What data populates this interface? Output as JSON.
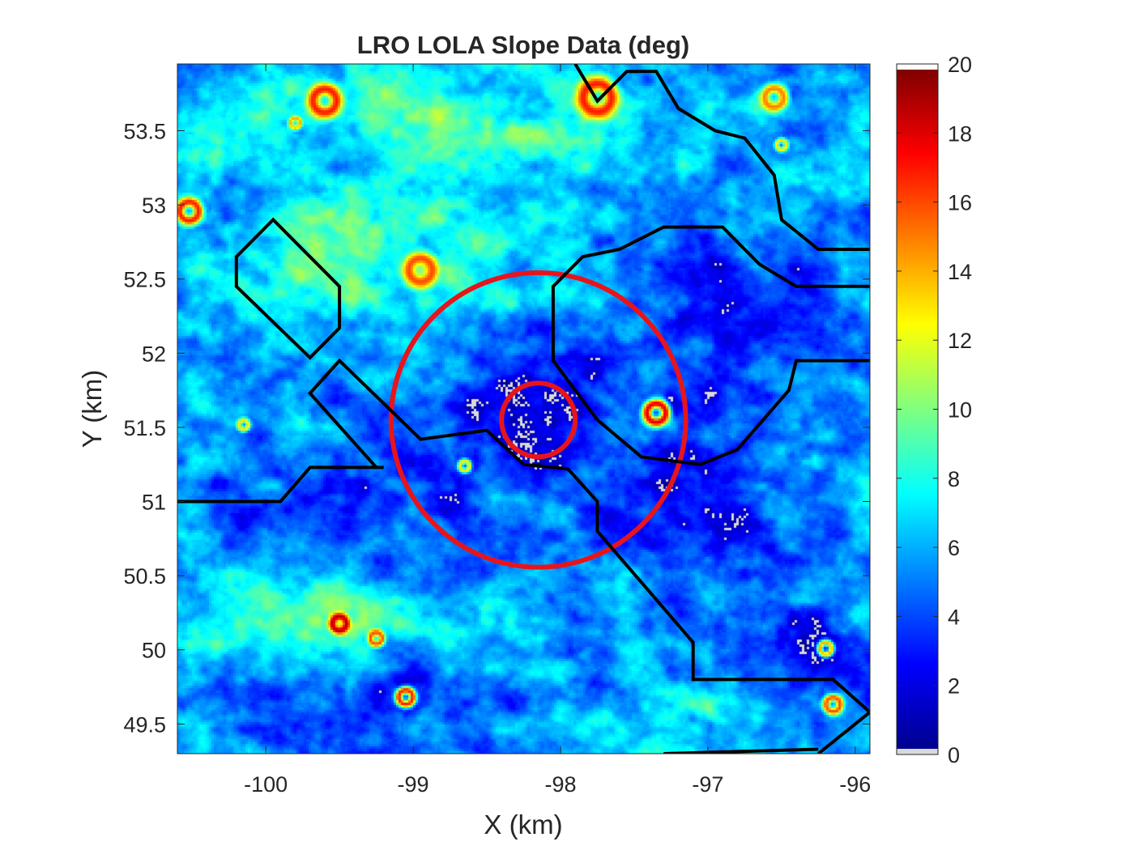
{
  "chart_data": {
    "type": "heatmap",
    "title": "LRO LOLA Slope Data (deg)",
    "xlabel": "X (km)",
    "ylabel": "Y (km)",
    "xlim": [
      -100.6,
      -95.9
    ],
    "ylim": [
      49.3,
      53.95
    ],
    "xticks": [
      -100,
      -99,
      -98,
      -97,
      -96
    ],
    "yticks": [
      49.5,
      50,
      50.5,
      51,
      51.5,
      52,
      52.5,
      53,
      53.5
    ],
    "colorbar": {
      "label": "",
      "range": [
        0,
        20
      ],
      "ticks": [
        0,
        2,
        4,
        6,
        8,
        10,
        12,
        14,
        16,
        18,
        20
      ],
      "colormap": "jet",
      "under_color": "#d9d9d9",
      "over_color": "#ffffff"
    },
    "background_level": 6,
    "field_features": [
      {
        "type": "low-slope zone",
        "x": -98.2,
        "y": 51.6,
        "rx": 0.7,
        "ry": 0.55,
        "value": 2.5
      },
      {
        "type": "low-slope zone",
        "x": -96.8,
        "y": 52.3,
        "rx": 0.8,
        "ry": 0.5,
        "value": 3
      },
      {
        "type": "low-slope zone",
        "x": -97.0,
        "y": 50.9,
        "rx": 0.7,
        "ry": 0.6,
        "value": 3
      },
      {
        "type": "low-slope zone",
        "x": -99.5,
        "y": 51.0,
        "rx": 0.8,
        "ry": 0.35,
        "value": 3
      },
      {
        "type": "low-slope zone",
        "x": -99.2,
        "y": 49.6,
        "rx": 0.8,
        "ry": 0.4,
        "value": 3.5
      },
      {
        "type": "low-slope zone",
        "x": -96.3,
        "y": 49.9,
        "rx": 0.5,
        "ry": 0.5,
        "value": 3.5
      },
      {
        "type": "ridge",
        "x": -99.3,
        "y": 52.6,
        "rx": 1.2,
        "ry": 0.5,
        "value": 9
      },
      {
        "type": "ridge",
        "x": -98.9,
        "y": 53.6,
        "rx": 1.3,
        "ry": 0.35,
        "value": 9
      },
      {
        "type": "ridge",
        "x": -99.8,
        "y": 50.2,
        "rx": 0.9,
        "ry": 0.3,
        "value": 10
      },
      {
        "type": "ridge",
        "x": -97.0,
        "y": 49.5,
        "rx": 0.6,
        "ry": 0.3,
        "value": 8
      }
    ],
    "craters": [
      {
        "x": -100.52,
        "y": 52.95,
        "r": 0.08,
        "peak": 17
      },
      {
        "x": -99.6,
        "y": 53.7,
        "r": 0.1,
        "peak": 17
      },
      {
        "x": -99.8,
        "y": 53.55,
        "r": 0.04,
        "peak": 14
      },
      {
        "x": -97.75,
        "y": 53.72,
        "r": 0.12,
        "peak": 17
      },
      {
        "x": -96.55,
        "y": 53.72,
        "r": 0.08,
        "peak": 15
      },
      {
        "x": -98.95,
        "y": 52.55,
        "r": 0.1,
        "peak": 16
      },
      {
        "x": -97.35,
        "y": 51.58,
        "r": 0.08,
        "peak": 18
      },
      {
        "x": -99.5,
        "y": 50.15,
        "r": 0.06,
        "peak": 19
      },
      {
        "x": -99.25,
        "y": 50.05,
        "r": 0.05,
        "peak": 16
      },
      {
        "x": -99.05,
        "y": 49.65,
        "r": 0.06,
        "peak": 17
      },
      {
        "x": -96.15,
        "y": 49.6,
        "r": 0.06,
        "peak": 16
      },
      {
        "x": -96.2,
        "y": 49.98,
        "r": 0.05,
        "peak": 14
      },
      {
        "x": -100.15,
        "y": 51.5,
        "r": 0.04,
        "peak": 13
      },
      {
        "x": -96.5,
        "y": 53.4,
        "r": 0.04,
        "peak": 13
      },
      {
        "x": -98.65,
        "y": 51.22,
        "r": 0.04,
        "peak": 13
      }
    ],
    "overlays": [
      {
        "type": "circle",
        "color": "#e8141b",
        "center": [
          -98.15,
          51.55
        ],
        "radius": 1.0
      },
      {
        "type": "circle",
        "color": "#e8141b",
        "center": [
          -98.15,
          51.55
        ],
        "radius": 0.25
      },
      {
        "type": "polygon",
        "color": "#000000",
        "points": [
          [
            -99.95,
            52.9
          ],
          [
            -100.2,
            52.65
          ],
          [
            -100.2,
            52.45
          ],
          [
            -99.7,
            51.97
          ],
          [
            -99.5,
            52.17
          ],
          [
            -99.5,
            52.45
          ]
        ]
      },
      {
        "type": "polyline",
        "color": "#000000",
        "points": [
          [
            -100.6,
            51.0
          ],
          [
            -99.9,
            51.0
          ],
          [
            -99.7,
            51.23
          ],
          [
            -99.2,
            51.23
          ],
          [
            -99.25,
            51.23
          ],
          [
            -99.7,
            51.73
          ],
          [
            -99.5,
            51.95
          ],
          [
            -98.95,
            51.42
          ],
          [
            -98.5,
            51.48
          ],
          [
            -98.25,
            51.25
          ],
          [
            -97.95,
            51.22
          ],
          [
            -97.75,
            51.0
          ],
          [
            -97.75,
            50.8
          ],
          [
            -97.1,
            50.05
          ],
          [
            -97.1,
            49.8
          ],
          [
            -96.15,
            49.8
          ],
          [
            -95.9,
            49.58
          ],
          [
            -96.25,
            49.3
          ]
        ]
      },
      {
        "type": "polyline",
        "color": "#000000",
        "points": [
          [
            -97.3,
            49.3
          ],
          [
            -96.25,
            49.33
          ]
        ]
      },
      {
        "type": "polyline",
        "color": "#000000",
        "points": [
          [
            -97.75,
            51.55
          ],
          [
            -97.45,
            51.3
          ],
          [
            -97.05,
            51.25
          ],
          [
            -96.8,
            51.35
          ],
          [
            -96.45,
            51.75
          ],
          [
            -96.4,
            51.95
          ],
          [
            -95.9,
            51.95
          ]
        ]
      },
      {
        "type": "polyline",
        "color": "#000000",
        "points": [
          [
            -97.75,
            51.55
          ],
          [
            -98.05,
            51.95
          ],
          [
            -98.05,
            52.45
          ],
          [
            -97.85,
            52.65
          ],
          [
            -97.6,
            52.7
          ],
          [
            -97.3,
            52.85
          ],
          [
            -96.9,
            52.85
          ],
          [
            -96.65,
            52.6
          ],
          [
            -96.4,
            52.45
          ],
          [
            -95.9,
            52.45
          ]
        ]
      },
      {
        "type": "polyline",
        "color": "#000000",
        "points": [
          [
            -97.9,
            53.95
          ],
          [
            -97.75,
            53.7
          ],
          [
            -97.55,
            53.9
          ],
          [
            -97.35,
            53.9
          ],
          [
            -97.2,
            53.65
          ],
          [
            -96.95,
            53.5
          ],
          [
            -96.75,
            53.45
          ],
          [
            -96.55,
            53.2
          ],
          [
            -96.5,
            52.9
          ],
          [
            -96.25,
            52.7
          ],
          [
            -95.9,
            52.7
          ]
        ]
      }
    ]
  }
}
